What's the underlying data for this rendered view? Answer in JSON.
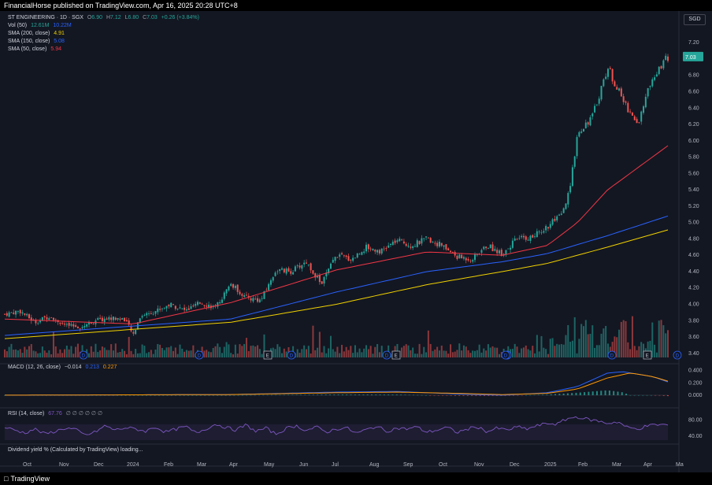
{
  "header": {
    "text": "FinancialHorse published on TradingView.com, Apr 16, 2025 20:28 UTC+8"
  },
  "footer": {
    "logo_text": "TradingView",
    "logo_icon": "tradingview-logo-icon"
  },
  "currency": "SGD",
  "legends": {
    "title": "ST ENGINEERING · 1D · SGX",
    "ohlc": {
      "o_label": "O",
      "o": "6.90",
      "h_label": "H",
      "h": "7.12",
      "l_label": "L",
      "l": "6.80",
      "c_label": "C",
      "c": "7.03",
      "change": "+0.26 (+3.84%)"
    },
    "vol": {
      "label": "Vol (50)",
      "v1": "12.61M",
      "v2": "10.22M"
    },
    "sma200": {
      "label": "SMA (200, close)",
      "value": "4.91"
    },
    "sma150": {
      "label": "SMA (150, close)",
      "value": "5.08"
    },
    "sma50": {
      "label": "SMA (50, close)",
      "value": "5.94"
    },
    "macd": {
      "label": "MACD (12, 26, close)",
      "v1": "−0.014",
      "v2": "0.213",
      "v3": "0.227"
    },
    "rsi": {
      "label": "RSI (14, close)",
      "v1": "67.76",
      "rest": "∅ ∅ ∅ ∅ ∅ ∅"
    },
    "dividend": "Dividend yield % (Calculated by TradingView) loading..."
  },
  "colors": {
    "up": "#26a69a",
    "down": "#ef5350",
    "sma50": "#f23645",
    "sma150": "#2962ff",
    "sma200": "#f0d000",
    "macd": "#2962ff",
    "signal": "#ff9800",
    "rsi": "#7e57c2"
  },
  "chart_data": [
    {
      "type": "candlestick",
      "title": "ST ENGINEERING · 1D · SGX",
      "x_ticks": [
        "Oct",
        "Nov",
        "Dec",
        "2024",
        "Feb",
        "Mar",
        "Apr",
        "May",
        "Jun",
        "Jul",
        "Aug",
        "Sep",
        "Oct",
        "Nov",
        "Dec",
        "2025",
        "Feb",
        "Mar",
        "Apr",
        "Ma"
      ],
      "y_ticks": [
        "7.20",
        "6.80",
        "6.60",
        "6.40",
        "6.20",
        "6.00",
        "5.80",
        "5.60",
        "5.40",
        "5.20",
        "5.00",
        "4.80",
        "4.60",
        "4.40",
        "4.20",
        "4.00",
        "3.80",
        "3.60",
        "3.40"
      ],
      "ylim": [
        3.35,
        7.25
      ],
      "last_price_label": "7.03",
      "event_markers": [
        "D",
        "D",
        "E",
        "D",
        "D",
        "E",
        "D",
        "D",
        "D",
        "E",
        "D"
      ],
      "approx_close_path": [
        [
          0,
          3.88
        ],
        [
          2,
          3.92
        ],
        [
          4,
          3.78
        ],
        [
          6,
          3.86
        ],
        [
          8,
          3.74
        ],
        [
          10,
          3.72
        ],
        [
          12,
          3.8
        ],
        [
          14,
          3.83
        ],
        [
          16,
          3.82
        ],
        [
          17,
          3.62
        ],
        [
          18,
          3.86
        ],
        [
          20,
          3.92
        ],
        [
          22,
          4.0
        ],
        [
          24,
          3.92
        ],
        [
          26,
          4.02
        ],
        [
          28,
          3.96
        ],
        [
          30,
          4.25
        ],
        [
          32,
          4.08
        ],
        [
          34,
          4.05
        ],
        [
          36,
          4.42
        ],
        [
          38,
          4.4
        ],
        [
          40,
          4.52
        ],
        [
          42,
          4.25
        ],
        [
          44,
          4.6
        ],
        [
          46,
          4.55
        ],
        [
          48,
          4.7
        ],
        [
          50,
          4.65
        ],
        [
          52,
          4.78
        ],
        [
          54,
          4.72
        ],
        [
          56,
          4.8
        ],
        [
          58,
          4.72
        ],
        [
          60,
          4.58
        ],
        [
          62,
          4.55
        ],
        [
          64,
          4.72
        ],
        [
          66,
          4.62
        ],
        [
          68,
          4.8
        ],
        [
          70,
          4.82
        ],
        [
          72,
          4.95
        ],
        [
          74,
          5.1
        ],
        [
          75,
          5.4
        ],
        [
          76,
          6.1
        ],
        [
          78,
          6.3
        ],
        [
          80,
          6.9
        ],
        [
          82,
          6.5
        ],
        [
          84,
          6.2
        ],
        [
          86,
          6.8
        ],
        [
          88,
          7.03
        ]
      ],
      "sma50_path": [
        [
          0,
          3.82
        ],
        [
          17,
          3.76
        ],
        [
          30,
          4.02
        ],
        [
          44,
          4.42
        ],
        [
          56,
          4.64
        ],
        [
          66,
          4.6
        ],
        [
          72,
          4.72
        ],
        [
          76,
          5.0
        ],
        [
          80,
          5.4
        ],
        [
          88,
          5.94
        ]
      ],
      "sma150_path": [
        [
          0,
          3.62
        ],
        [
          30,
          3.82
        ],
        [
          44,
          4.15
        ],
        [
          56,
          4.4
        ],
        [
          66,
          4.52
        ],
        [
          72,
          4.62
        ],
        [
          80,
          4.84
        ],
        [
          88,
          5.08
        ]
      ],
      "sma200_path": [
        [
          0,
          3.58
        ],
        [
          30,
          3.78
        ],
        [
          44,
          4.0
        ],
        [
          56,
          4.24
        ],
        [
          66,
          4.4
        ],
        [
          72,
          4.5
        ],
        [
          80,
          4.7
        ],
        [
          88,
          4.91
        ]
      ]
    },
    {
      "type": "line",
      "title": "MACD (12, 26, close)",
      "y_ticks": [
        "0.400",
        "0.200",
        "0.000"
      ],
      "ylim": [
        -0.09,
        0.42
      ],
      "macd_path": [
        [
          0,
          0.0
        ],
        [
          30,
          0.01
        ],
        [
          44,
          0.05
        ],
        [
          52,
          0.06
        ],
        [
          60,
          0.02
        ],
        [
          66,
          0.0
        ],
        [
          72,
          0.04
        ],
        [
          76,
          0.14
        ],
        [
          80,
          0.36
        ],
        [
          82,
          0.38
        ],
        [
          86,
          0.3
        ],
        [
          88,
          0.213
        ]
      ],
      "signal_path": [
        [
          0,
          0.0
        ],
        [
          30,
          0.01
        ],
        [
          44,
          0.04
        ],
        [
          52,
          0.05
        ],
        [
          60,
          0.03
        ],
        [
          66,
          0.01
        ],
        [
          72,
          0.03
        ],
        [
          76,
          0.1
        ],
        [
          80,
          0.28
        ],
        [
          83,
          0.36
        ],
        [
          86,
          0.3
        ],
        [
          88,
          0.227
        ]
      ]
    },
    {
      "type": "line",
      "title": "RSI (14, close)",
      "y_ticks": [
        "80.00",
        "40.00"
      ],
      "ylim": [
        30,
        95
      ],
      "band": [
        30,
        70
      ],
      "values_approx": [
        62,
        55,
        48,
        58,
        45,
        52,
        60,
        57,
        42,
        50,
        66,
        55,
        61,
        58,
        52,
        63,
        50,
        57,
        64,
        48,
        58,
        70,
        62,
        55,
        68,
        52,
        60,
        45,
        59,
        66,
        54,
        63,
        50,
        58,
        61,
        47,
        56,
        65,
        52,
        60,
        58,
        63,
        50,
        55,
        62,
        49,
        57,
        64,
        51,
        60,
        55,
        63,
        58,
        66,
        72,
        70,
        84,
        88,
        82,
        78,
        72,
        76,
        61,
        58,
        66,
        69,
        68
      ]
    }
  ]
}
